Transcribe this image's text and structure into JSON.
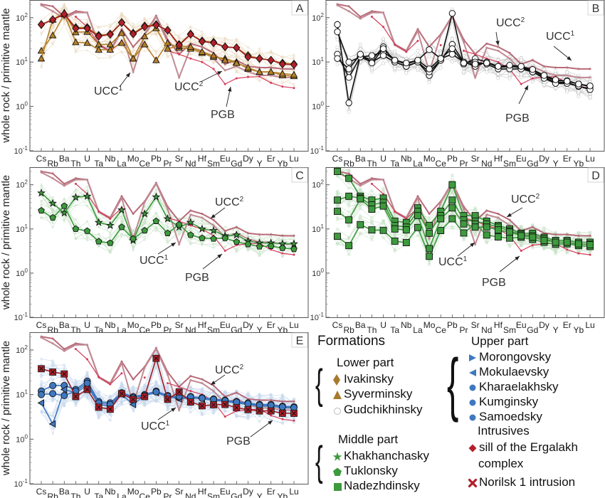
{
  "chart_data": [
    {
      "panel": "A",
      "type": "line",
      "ylabel": "whole rock / primitive mantle",
      "yscale": "log",
      "ylim": [
        0.1,
        250
      ],
      "yticks": [
        "10-1",
        "100",
        "101",
        "102"
      ],
      "x": [
        "Cs",
        "Rb",
        "Ba",
        "Th",
        "U",
        "Ta",
        "Nb",
        "La",
        "Mo",
        "Ce",
        "Pb",
        "Pr",
        "Sr",
        "Nd",
        "Hf",
        "Sm",
        "Eu",
        "Gd",
        "Dy",
        "Y",
        "Er",
        "Yb",
        "Lu"
      ],
      "annotations": [
        {
          "text": "UCC",
          "sup": "1"
        },
        {
          "text": "UCC",
          "sup": "2"
        },
        {
          "text": "PGB",
          "sup": ""
        }
      ],
      "series": [
        {
          "name": "Ivakinsky",
          "marker": "diamond",
          "color": "#b5812a",
          "values": [
            70,
            90,
            120,
            60,
            60,
            40,
            43,
            78,
            45,
            65,
            70,
            52,
            25,
            43,
            30,
            28,
            22,
            21,
            14,
            12,
            11,
            9.5,
            9
          ]
        },
        {
          "name": "Syverminsky",
          "marker": "triangle",
          "color": "#b5812a",
          "values": [
            18,
            40,
            120,
            28,
            27,
            19,
            19,
            27,
            12,
            25,
            11,
            27,
            21,
            20,
            16,
            13,
            12,
            10,
            7,
            6,
            6,
            5,
            4.8
          ]
        },
        {
          "name": "Syverminsky",
          "marker": "triangle",
          "color": "#b5812a",
          "values": [
            12,
            90,
            130,
            47,
            48,
            25,
            25,
            45,
            12,
            38,
            58,
            20,
            23,
            22,
            17,
            14,
            11,
            9.5,
            7.5,
            6,
            6,
            5.5,
            5.2
          ]
        },
        {
          "name": "sill of the Ergalakh complex",
          "marker": "diamond",
          "color": "#b2202a",
          "values": [
            70,
            90,
            120,
            57,
            57,
            38,
            42,
            77,
            43,
            62,
            68,
            52,
            24,
            42,
            29,
            27,
            22,
            21,
            13,
            12,
            11,
            9,
            8.7
          ]
        }
      ]
    },
    {
      "panel": "B",
      "type": "line",
      "ylabel": "",
      "yscale": "log",
      "ylim": [
        0.1,
        250
      ],
      "yticks": [
        "10-1",
        "100",
        "101",
        "102"
      ],
      "x": [
        "Cs",
        "Rb",
        "Ba",
        "Th",
        "U",
        "Ta",
        "Nb",
        "La",
        "Mo",
        "Ce",
        "Pb",
        "Pr",
        "Sr",
        "Nd",
        "Hf",
        "Sm",
        "Eu",
        "Gd",
        "Dy",
        "Y",
        "Er",
        "Yb",
        "Lu"
      ],
      "annotations": [
        {
          "text": "UCC",
          "sup": "2"
        },
        {
          "text": "UCC",
          "sup": "1"
        },
        {
          "text": "PGB",
          "sup": ""
        }
      ],
      "series": [
        {
          "name": "Gudchikhinsky",
          "marker": "circle-open",
          "color": "#000000",
          "values": [
            70,
            1.2,
            14,
            11,
            22,
            10,
            8,
            10,
            5,
            11,
            125,
            9,
            12,
            10,
            8,
            8,
            7.5,
            6,
            4.5,
            3.5,
            3.5,
            2.8,
            2.5
          ]
        },
        {
          "name": "Gudchikhinsky",
          "marker": "circle-open",
          "color": "#000000",
          "values": [
            48,
            10,
            13,
            14,
            17,
            11,
            9,
            11,
            19,
            12,
            15,
            10,
            8,
            10,
            7.5,
            8,
            7.5,
            6.5,
            4.8,
            3.8,
            3.8,
            3.2,
            2.8
          ]
        },
        {
          "name": "Gudchikhinsky",
          "marker": "circle-open",
          "color": "#000000",
          "values": [
            15,
            4.5,
            13,
            10,
            14,
            10,
            8,
            10,
            6,
            11,
            25,
            10,
            10,
            9,
            7,
            7,
            7,
            6,
            4.3,
            3.3,
            3.3,
            2.9,
            2.4
          ]
        },
        {
          "name": "Gudchikhinsky",
          "marker": "circle-open",
          "color": "#000000",
          "values": [
            12,
            7,
            15,
            9.5,
            20,
            11,
            9.5,
            11,
            7,
            12,
            20,
            9.5,
            9,
            9.5,
            8,
            8.5,
            8,
            6.8,
            5,
            4,
            3.7,
            3.2,
            2.9
          ]
        }
      ]
    },
    {
      "panel": "C",
      "type": "line",
      "ylabel": "whole rock / primitive mantle",
      "yscale": "log",
      "ylim": [
        0.1,
        250
      ],
      "yticks": [
        "10-1",
        "100",
        "101",
        "102"
      ],
      "x": [
        "Cs",
        "Rb",
        "Ba",
        "Th",
        "U",
        "Ta",
        "Nb",
        "La",
        "Mo",
        "Ce",
        "Pb",
        "Pr",
        "Sr",
        "Nd",
        "Hf",
        "Sm",
        "Eu",
        "Gd",
        "Dy",
        "Y",
        "Er",
        "Yb",
        "Lu"
      ],
      "annotations": [
        {
          "text": "UCC",
          "sup": "2"
        },
        {
          "text": "UCC",
          "sup": "1"
        },
        {
          "text": "PGB",
          "sup": ""
        }
      ],
      "series": [
        {
          "name": "Khakhanchasky",
          "marker": "star",
          "color": "#3d9a3d",
          "values": [
            65,
            38,
            23,
            52,
            55,
            14,
            12,
            27,
            5.5,
            22,
            53,
            17,
            11,
            14,
            10,
            9.2,
            7,
            7.3,
            5.3,
            4.8,
            4.8,
            4.6,
            4.6
          ]
        },
        {
          "name": "Tuklonsky",
          "marker": "pentagon",
          "color": "#3d9a3d",
          "values": [
            26,
            18,
            33,
            10,
            9,
            5.2,
            4.8,
            11,
            6,
            9.2,
            15,
            8,
            12.5,
            7.3,
            6.2,
            6,
            6.2,
            5.1,
            4.5,
            4,
            4.1,
            3.7,
            3.5
          ]
        }
      ]
    },
    {
      "panel": "D",
      "type": "line",
      "ylabel": "",
      "yscale": "log",
      "ylim": [
        0.1,
        250
      ],
      "yticks": [
        "10-1",
        "100",
        "101",
        "102"
      ],
      "x": [
        "Cs",
        "Rb",
        "Ba",
        "Th",
        "U",
        "Ta",
        "Nb",
        "La",
        "Mo",
        "Ce",
        "Pb",
        "Pr",
        "Sr",
        "Nd",
        "Hf",
        "Sm",
        "Eu",
        "Gd",
        "Dy",
        "Y",
        "Er",
        "Yb",
        "Lu"
      ],
      "annotations": [
        {
          "text": "UCC",
          "sup": "2"
        },
        {
          "text": "UCC",
          "sup": "1"
        },
        {
          "text": "PGB",
          "sup": ""
        }
      ],
      "series": [
        {
          "name": "Nadezhdinsky",
          "marker": "square",
          "color": "#3d9a3d",
          "values": [
            200,
            140,
            55,
            45,
            50,
            15,
            14,
            30,
            12,
            25,
            100,
            20,
            20,
            15,
            12,
            10,
            8,
            8,
            6.5,
            5.5,
            5.5,
            5,
            5
          ]
        },
        {
          "name": "Nadezhdinsky",
          "marker": "square",
          "color": "#3d9a3d",
          "values": [
            45,
            55,
            50,
            35,
            40,
            12,
            11,
            25,
            8,
            20,
            45,
            16,
            15,
            13,
            11,
            9,
            7.5,
            7,
            6,
            5,
            5,
            4.5,
            4.5
          ]
        },
        {
          "name": "Nadezhdinsky",
          "marker": "square",
          "color": "#3d9a3d",
          "values": [
            6.8,
            4.2,
            12.5,
            9.5,
            9.3,
            5.3,
            4.9,
            10.8,
            2.4,
            9.2,
            17,
            8.1,
            13,
            7.3,
            6.6,
            6.2,
            6.5,
            5.8,
            5,
            4.5,
            4.6,
            4.2,
            4
          ]
        },
        {
          "name": "Nadezhdinsky",
          "marker": "square",
          "color": "#3d9a3d",
          "values": [
            25,
            16,
            48,
            28,
            33,
            10,
            9.5,
            20,
            3.6,
            17,
            30,
            13,
            11,
            11,
            9.5,
            8.5,
            7,
            6.5,
            5.5,
            5,
            5,
            4.6,
            4.4
          ]
        }
      ]
    },
    {
      "panel": "E",
      "type": "line",
      "ylabel": "whole rock / primitive mantle",
      "yscale": "log",
      "ylim": [
        0.1,
        250
      ],
      "yticks": [
        "10-1",
        "100",
        "101",
        "102"
      ],
      "x": [
        "Cs",
        "Rb",
        "Ba",
        "Th",
        "U",
        "Ta",
        "Nb",
        "La",
        "Mo",
        "Ce",
        "Pb",
        "Pr",
        "Sr",
        "Nd",
        "Hf",
        "Sm",
        "Eu",
        "Gd",
        "Dy",
        "Y",
        "Er",
        "Yb",
        "Lu"
      ],
      "annotations": [
        {
          "text": "UCC",
          "sup": "2"
        },
        {
          "text": "UCC",
          "sup": "1"
        },
        {
          "text": "PGB",
          "sup": ""
        }
      ],
      "series": [
        {
          "name": "Kharaelakhsky",
          "marker": "circle",
          "color": "#3f78c0",
          "values": [
            12,
            16,
            16,
            13,
            20,
            7,
            6.5,
            11,
            9,
            10,
            12,
            9.5,
            8.5,
            9,
            8.5,
            8,
            7.5,
            7,
            6.5,
            6,
            6,
            5.5,
            5.3
          ]
        },
        {
          "name": "Mokulaevsky",
          "marker": "triangle-left",
          "color": "#3f78c0",
          "values": [
            6.5,
            2.2,
            13,
            11,
            16,
            6,
            5.5,
            10,
            6,
            9.5,
            11,
            9,
            8,
            8.5,
            8,
            7.5,
            7,
            6.5,
            6,
            5.5,
            5.5,
            5,
            5
          ]
        },
        {
          "name": "Kumginsky",
          "marker": "circle",
          "color": "#3f78c0",
          "values": [
            10,
            10.5,
            9.5,
            12,
            18,
            6.5,
            6,
            10.5,
            8.5,
            9.5,
            11.5,
            9.2,
            9,
            8.8,
            8.3,
            7.8,
            7.3,
            6.8,
            6.3,
            5.8,
            5.8,
            5.3,
            5.1
          ]
        },
        {
          "name": "Norilsk 1 intrusion",
          "marker": "x",
          "color": "#b2202a",
          "values": [
            38,
            32,
            29,
            9,
            13,
            5.2,
            4.7,
            10.5,
            7.8,
            9,
            65,
            7.8,
            11.5,
            6.8,
            5.6,
            5.9,
            6,
            5.1,
            4.6,
            4.3,
            4.3,
            3.8,
            3.8
          ]
        }
      ]
    }
  ],
  "reference_curves": {
    "UCC1": {
      "label": "UCC",
      "sup": "1",
      "color": "#b86a78",
      "values": [
        200,
        180,
        105,
        140,
        130,
        25,
        18,
        55,
        22,
        42,
        110,
        32,
        15,
        26,
        22,
        16,
        9,
        11,
        8,
        7.5,
        7.5,
        7,
        7
      ]
    },
    "UCC2": {
      "label": "UCC",
      "sup": "2",
      "color": "#c08a94",
      "values": [
        190,
        140,
        95,
        130,
        130,
        24,
        17,
        50,
        6,
        40,
        105,
        28,
        4.5,
        21,
        18,
        12,
        6.5,
        8,
        6,
        5,
        5,
        4.5,
        4.5
      ]
    },
    "PGB": {
      "label": "PGB",
      "sup": "",
      "color": "#d43c5a",
      "values": [
        null,
        null,
        null,
        105,
        62,
        25,
        17,
        30,
        null,
        24,
        null,
        18,
        15,
        12,
        10,
        7,
        3.2,
        4.3,
        4.6,
        4.7,
        3.4,
        2.8,
        2.6
      ]
    }
  },
  "panel_labels": [
    "A",
    "B",
    "C",
    "D",
    "E"
  ],
  "legend": {
    "title": "Formations",
    "lower": {
      "heading": "Lower part",
      "items": [
        {
          "label": "Ivakinsky",
          "marker": "diamond",
          "color": "#a87a2e"
        },
        {
          "label": "Syverminsky",
          "marker": "triangle",
          "color": "#a87a2e"
        },
        {
          "label": "Gudchikhinsky",
          "marker": "circle-open",
          "color": "#bbbbbb"
        }
      ]
    },
    "middle": {
      "heading": "Middle part",
      "items": [
        {
          "label": "Khakhanchasky",
          "marker": "star",
          "color": "#3d9a3d"
        },
        {
          "label": "Tuklonsky",
          "marker": "pentagon",
          "color": "#3d9a3d"
        },
        {
          "label": "Nadezhdinsky",
          "marker": "square",
          "color": "#3d9a3d"
        }
      ]
    },
    "upper": {
      "heading": "Upper part",
      "items": [
        {
          "label": "Morongovsky",
          "marker": "triangle-right",
          "color": "#3f78c0"
        },
        {
          "label": "Mokulaevsky",
          "marker": "triangle-left",
          "color": "#3f78c0"
        },
        {
          "label": "Kharaelakhsky",
          "marker": "circle",
          "color": "#3f78c0"
        },
        {
          "label": "Kumginsky",
          "marker": "circle",
          "color": "#3f78c0"
        },
        {
          "label": "Samoedsky",
          "marker": "circle",
          "color": "#3f78c0"
        }
      ]
    },
    "intrusives": {
      "heading": "Intrusives",
      "items": [
        {
          "label": "sill of the Ergalakh",
          "label2": "complex",
          "marker": "diamond",
          "color": "#b2202a"
        },
        {
          "label": "Norilsk 1 intrusion",
          "marker": "x",
          "color": "#b2202a"
        }
      ]
    }
  }
}
